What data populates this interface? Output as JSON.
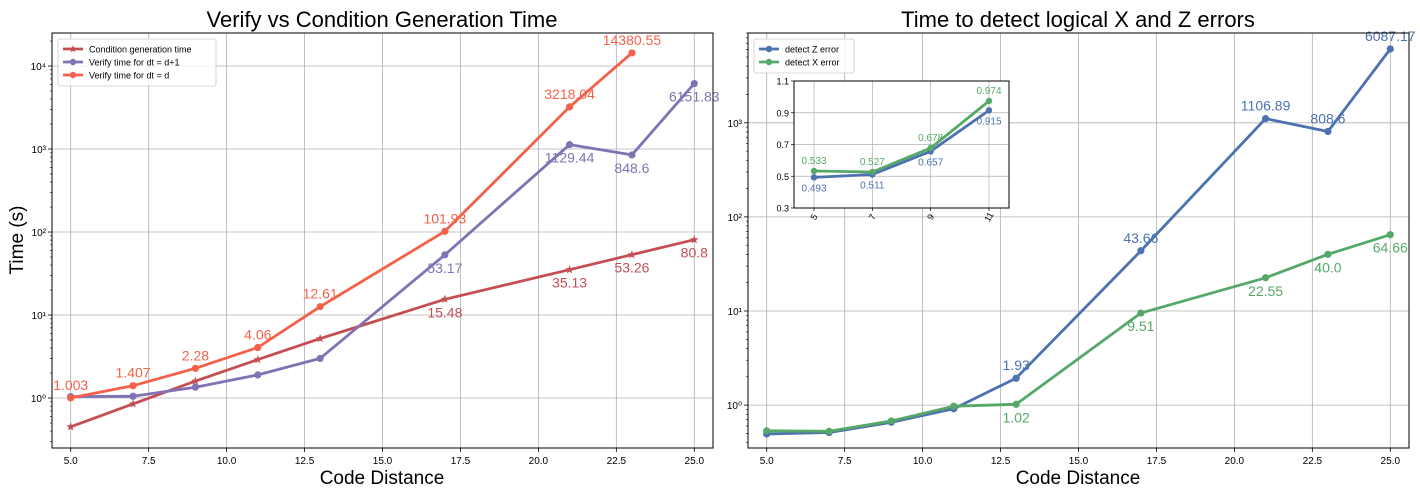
{
  "chart_data": [
    {
      "type": "line",
      "id": "left",
      "title": "Verify vs Condition Generation Time",
      "xlabel": "Code Distance",
      "ylabel": "Time (s)",
      "xlim": [
        4.4,
        25.6
      ],
      "ylim": [
        0.25,
        25000
      ],
      "yscale": "log",
      "grid": true,
      "legend_position": "top-left",
      "xticks": [
        5.0,
        7.5,
        10.0,
        12.5,
        15.0,
        17.5,
        20.0,
        22.5,
        25.0
      ],
      "xtick_labels": [
        "5.0",
        "7.5",
        "10.0",
        "12.5",
        "15.0",
        "17.5",
        "20.0",
        "22.5",
        "25.0"
      ],
      "yticks": [
        1,
        10,
        100,
        1000,
        10000
      ],
      "ytick_labels": [
        "10⁰",
        "10¹",
        "10²",
        "10³",
        "10⁴"
      ],
      "series": [
        {
          "name": "Condition generation time",
          "color": "#c44e52",
          "marker": "star",
          "x": [
            5,
            7,
            9,
            11,
            13,
            17,
            21,
            23,
            25
          ],
          "values": [
            0.45,
            0.85,
            1.6,
            2.9,
            5.2,
            15.48,
            35.13,
            53.26,
            80.8
          ],
          "labels": [
            {
              "x": 17,
              "y": 15.48,
              "text": "15.48",
              "pos": "below"
            },
            {
              "x": 21,
              "y": 35.13,
              "text": "35.13",
              "pos": "below"
            },
            {
              "x": 23,
              "y": 53.26,
              "text": "53.26",
              "pos": "below"
            },
            {
              "x": 25,
              "y": 80.8,
              "text": "80.8",
              "pos": "below"
            }
          ]
        },
        {
          "name": "Verify time for dt = d+1",
          "color": "#8172b3",
          "marker": "circle",
          "x": [
            5,
            7,
            9,
            11,
            13,
            17,
            21,
            23,
            25
          ],
          "values": [
            1.04,
            1.05,
            1.35,
            1.9,
            3.0,
            53.17,
            1129.44,
            848.6,
            6151.83
          ],
          "labels": [
            {
              "x": 17,
              "y": 53.17,
              "text": "53.17",
              "pos": "below"
            },
            {
              "x": 21,
              "y": 1129.44,
              "text": "1129.44",
              "pos": "below"
            },
            {
              "x": 23,
              "y": 848.6,
              "text": "848.6",
              "pos": "below"
            },
            {
              "x": 25,
              "y": 6151.83,
              "text": "6151.83",
              "pos": "below"
            }
          ]
        },
        {
          "name": "Verify time for dt = d",
          "color": "#f4614a",
          "marker": "circle",
          "x": [
            5,
            7,
            9,
            11,
            13,
            17,
            21,
            23
          ],
          "values": [
            1.003,
            1.407,
            2.28,
            4.06,
            12.61,
            101.93,
            3218.04,
            14380.55
          ],
          "labels": [
            {
              "x": 5,
              "y": 1.003,
              "text": "1.003",
              "pos": "above"
            },
            {
              "x": 7,
              "y": 1.407,
              "text": "1.407",
              "pos": "above"
            },
            {
              "x": 9,
              "y": 2.28,
              "text": "2.28",
              "pos": "above"
            },
            {
              "x": 11,
              "y": 4.06,
              "text": "4.06",
              "pos": "above"
            },
            {
              "x": 13,
              "y": 12.61,
              "text": "12.61",
              "pos": "above"
            },
            {
              "x": 17,
              "y": 101.93,
              "text": "101.93",
              "pos": "above"
            },
            {
              "x": 21,
              "y": 3218.04,
              "text": "3218.04",
              "pos": "above"
            },
            {
              "x": 23,
              "y": 14380.55,
              "text": "14380.55",
              "pos": "above"
            }
          ]
        }
      ]
    },
    {
      "type": "line",
      "id": "right",
      "title": "Time to detect logical X and Z errors",
      "xlabel": "Code Distance",
      "ylabel": "",
      "xlim": [
        4.4,
        25.6
      ],
      "ylim": [
        0.35,
        9000
      ],
      "yscale": "log",
      "grid": true,
      "legend_position": "top-left",
      "xticks": [
        5.0,
        7.5,
        10.0,
        12.5,
        15.0,
        17.5,
        20.0,
        22.5,
        25.0
      ],
      "xtick_labels": [
        "5.0",
        "7.5",
        "10.0",
        "12.5",
        "15.0",
        "17.5",
        "20.0",
        "22.5",
        "25.0"
      ],
      "yticks": [
        1,
        10,
        100,
        1000
      ],
      "ytick_labels": [
        "10⁰",
        "10¹",
        "10²",
        "10³"
      ],
      "series": [
        {
          "name": "detect Z error",
          "color": "#4c72b0",
          "marker": "circle",
          "x": [
            5,
            7,
            9,
            11,
            13,
            17,
            21,
            23,
            25
          ],
          "values": [
            0.493,
            0.511,
            0.657,
            0.915,
            1.93,
            43.66,
            1106.89,
            808.6,
            6087.17
          ],
          "labels": [
            {
              "x": 13,
              "y": 1.93,
              "text": "1.93",
              "pos": "above"
            },
            {
              "x": 17,
              "y": 43.66,
              "text": "43.66",
              "pos": "above"
            },
            {
              "x": 21,
              "y": 1106.89,
              "text": "1106.89",
              "pos": "above"
            },
            {
              "x": 23,
              "y": 808.6,
              "text": "808.6",
              "pos": "above"
            },
            {
              "x": 25,
              "y": 6087.17,
              "text": "6087.17",
              "pos": "above"
            }
          ]
        },
        {
          "name": "detect X error",
          "color": "#55a868",
          "marker": "circle",
          "x": [
            5,
            7,
            9,
            11,
            13,
            17,
            21,
            23,
            25
          ],
          "values": [
            0.533,
            0.527,
            0.678,
            0.974,
            1.02,
            9.51,
            22.55,
            40.0,
            64.66
          ],
          "labels": [
            {
              "x": 13,
              "y": 1.02,
              "text": "1.02",
              "pos": "below"
            },
            {
              "x": 17,
              "y": 9.51,
              "text": "9.51",
              "pos": "below"
            },
            {
              "x": 21,
              "y": 22.55,
              "text": "22.55",
              "pos": "below"
            },
            {
              "x": 23,
              "y": 40.0,
              "text": "40.0",
              "pos": "below"
            },
            {
              "x": 25,
              "y": 64.66,
              "text": "64.66",
              "pos": "below"
            }
          ]
        }
      ],
      "inset": {
        "type": "line",
        "x_categories": [
          "5",
          "7",
          "9",
          "11"
        ],
        "ylim": [
          0.3,
          1.1
        ],
        "yticks": [
          0.3,
          0.5,
          0.7,
          0.9,
          1.1
        ],
        "ytick_labels": [
          "0.3",
          "0.5",
          "0.7",
          "0.9",
          "1.1"
        ],
        "grid": true,
        "series": [
          {
            "name": "detect Z error",
            "color": "#4c72b0",
            "values": [
              0.493,
              0.511,
              0.657,
              0.915
            ],
            "labels": [
              "0.493",
              "0.511",
              "0.657",
              "0.915"
            ],
            "pos": "below"
          },
          {
            "name": "detect X error",
            "color": "#55a868",
            "values": [
              0.533,
              0.527,
              0.678,
              0.974
            ],
            "labels": [
              "0.533",
              "0.527",
              "0.678",
              "0.974"
            ],
            "pos": "above"
          }
        ]
      }
    }
  ]
}
